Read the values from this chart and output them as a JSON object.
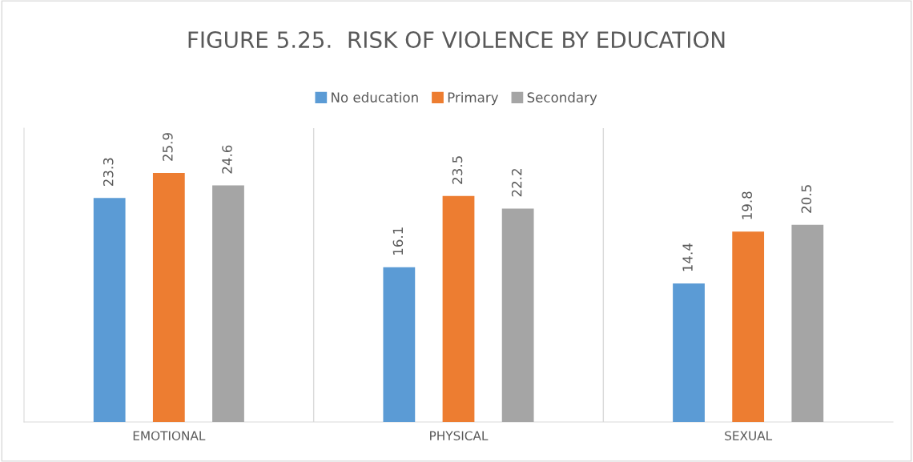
{
  "chart_data": {
    "type": "bar",
    "title": "FIGURE 5.25.  RISK OF VIOLENCE BY EDUCATION",
    "categories": [
      "EMOTIONAL",
      "PHYSICAL",
      "SEXUAL"
    ],
    "series": [
      {
        "name": "No education",
        "color": "#5b9bd5",
        "values": [
          23.3,
          16.1,
          14.4
        ]
      },
      {
        "name": "Primary",
        "color": "#ed7d31",
        "values": [
          25.9,
          23.5,
          19.8
        ]
      },
      {
        "name": "Secondary",
        "color": "#a5a5a5",
        "values": [
          24.6,
          22.2,
          20.5
        ]
      }
    ],
    "data_labels": true,
    "legend": "top",
    "grid": "x"
  }
}
